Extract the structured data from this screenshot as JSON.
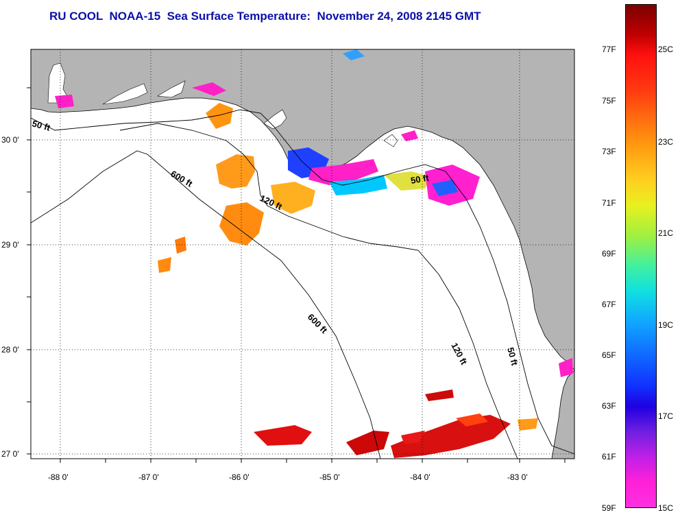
{
  "header": {
    "title": "RU COOL  NOAA-15  Sea Surface Temperature:  November 24, 2008 2145 GMT"
  },
  "map": {
    "lat_labels": [
      "30 0'",
      "29 0'",
      "28 0'",
      "27 0'"
    ],
    "lon_labels": [
      "-88 0'",
      "-87 0'",
      "-86 0'",
      "-85 0'",
      "-84 0'",
      "-83 0'"
    ],
    "depth_contours": [
      {
        "label": "50 ft"
      },
      {
        "label": "600 ft"
      },
      {
        "label": "120 ft"
      },
      {
        "label": "50 ft"
      },
      {
        "label": "600 ft"
      },
      {
        "label": "120 ft"
      },
      {
        "label": "50 ft"
      }
    ],
    "colors": {
      "land": "#b4b4b4",
      "water": "#ffffff",
      "grid": "#000000"
    }
  },
  "colorbar": {
    "fahrenheit_labels": [
      "77F",
      "75F",
      "73F",
      "71F",
      "69F",
      "67F",
      "65F",
      "63F",
      "61F",
      "59F"
    ],
    "celsius_labels": [
      "25C",
      "23C",
      "21C",
      "19C",
      "17C",
      "15C"
    ],
    "range_f": [
      59,
      79
    ],
    "range_c": [
      15,
      26
    ]
  }
}
